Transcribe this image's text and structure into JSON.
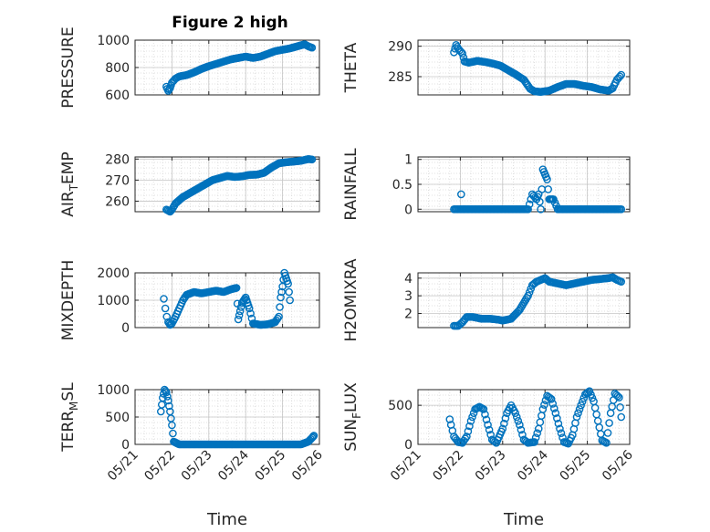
{
  "figure": {
    "title": "Figure 2 high",
    "series_color": "#0072BD"
  },
  "chart_data": [
    {
      "type": "scatter",
      "ylabel": "PRESSURE",
      "xlabel": "",
      "xlim": [
        0,
        5
      ],
      "ylim": [
        600,
        1000
      ],
      "yticks": [
        600,
        800,
        1000
      ],
      "xticks": [
        0,
        1,
        2,
        3,
        4,
        5
      ],
      "xticklabels": [
        "05/21",
        "05/22",
        "05/23",
        "05/24",
        "05/25",
        "05/26"
      ],
      "series": [
        {
          "name": "PRESSURE",
          "x": [
            0.85,
            0.9,
            0.95,
            1.0,
            1.1,
            1.2,
            1.4,
            1.6,
            1.8,
            2.0,
            2.3,
            2.6,
            2.9,
            3.0,
            3.2,
            3.4,
            3.6,
            3.8,
            4.0,
            4.2,
            4.4,
            4.6,
            4.7,
            4.8
          ],
          "y": [
            660,
            630,
            650,
            690,
            720,
            735,
            745,
            765,
            790,
            810,
            835,
            860,
            875,
            880,
            870,
            880,
            900,
            920,
            930,
            940,
            955,
            970,
            955,
            945
          ]
        }
      ]
    },
    {
      "type": "scatter",
      "ylabel": "THETA",
      "xlabel": "",
      "xlim": [
        0,
        5
      ],
      "ylim": [
        282,
        291
      ],
      "yticks": [
        285,
        290
      ],
      "xticks": [
        0,
        1,
        2,
        3,
        4,
        5
      ],
      "xticklabels": [
        "05/21",
        "05/22",
        "05/23",
        "05/24",
        "05/25",
        "05/26"
      ],
      "series": [
        {
          "name": "THETA",
          "x": [
            0.85,
            0.9,
            0.95,
            1.05,
            1.1,
            1.2,
            1.4,
            1.6,
            1.8,
            1.95,
            2.1,
            2.3,
            2.5,
            2.65,
            2.75,
            2.9,
            3.1,
            3.3,
            3.5,
            3.7,
            3.9,
            4.1,
            4.3,
            4.5,
            4.6,
            4.7,
            4.8
          ],
          "y": [
            289,
            290.2,
            289.6,
            288.8,
            287.5,
            287.3,
            287.6,
            287.4,
            287.1,
            286.8,
            286.2,
            285.4,
            284.5,
            283.0,
            282.6,
            282.5,
            282.7,
            283.3,
            283.8,
            283.8,
            283.5,
            283.3,
            282.9,
            282.7,
            283.1,
            284.5,
            285.3
          ]
        }
      ]
    },
    {
      "type": "scatter",
      "ylabel": "AIR_TEMP",
      "xlabel": "",
      "xlim": [
        0,
        5
      ],
      "ylim": [
        255,
        281
      ],
      "yticks": [
        260,
        270,
        280
      ],
      "xticks": [
        0,
        1,
        2,
        3,
        4,
        5
      ],
      "xticklabels": [
        "05/21",
        "05/22",
        "05/23",
        "05/24",
        "05/25",
        "05/26"
      ],
      "series": [
        {
          "name": "AIR_TEMP",
          "x": [
            0.85,
            0.95,
            1.0,
            1.1,
            1.3,
            1.5,
            1.7,
            1.9,
            2.1,
            2.3,
            2.5,
            2.7,
            2.9,
            3.1,
            3.3,
            3.5,
            3.7,
            3.9,
            4.1,
            4.3,
            4.5,
            4.7,
            4.8
          ],
          "y": [
            256,
            255,
            256,
            259,
            262,
            264,
            266,
            268,
            270,
            271,
            272,
            271.5,
            271.8,
            272.5,
            272.6,
            273.5,
            276,
            278,
            278.5,
            278.8,
            279.2,
            280.0,
            279.8
          ]
        }
      ]
    },
    {
      "type": "scatter",
      "ylabel": "RAINFALL",
      "xlabel": "",
      "xlim": [
        0,
        5
      ],
      "ylim": [
        -0.05,
        1.05
      ],
      "yticks": [
        0,
        0.5,
        1
      ],
      "xticks": [
        0,
        1,
        2,
        3,
        4,
        5
      ],
      "xticklabels": [
        "05/21",
        "05/22",
        "05/23",
        "05/24",
        "05/25",
        "05/26"
      ],
      "series": [
        {
          "name": "RAINFALL",
          "x": [
            0.85,
            1.0,
            1.2,
            1.4,
            1.6,
            1.8,
            2.0,
            2.2,
            2.4,
            2.6,
            2.7,
            2.8,
            2.85,
            2.9,
            2.95,
            3.0,
            3.05,
            3.1,
            3.15,
            3.2,
            3.3,
            3.5,
            3.7,
            3.9,
            4.1,
            4.3,
            4.5,
            4.7,
            4.8
          ],
          "y": [
            0,
            0,
            0,
            0,
            0,
            0,
            0,
            0,
            0,
            0,
            0.3,
            0.2,
            0.3,
            0.0,
            0.8,
            0.7,
            0.6,
            0.2,
            0.2,
            0.2,
            0,
            0,
            0,
            0,
            0,
            0,
            0,
            0,
            0
          ]
        },
        {
          "name": "RAINFALL-early",
          "x": [
            1.02
          ],
          "y": [
            0.3
          ]
        }
      ]
    },
    {
      "type": "scatter",
      "ylabel": "MIXDEPTH",
      "xlabel": "",
      "xlim": [
        0,
        5
      ],
      "ylim": [
        0,
        2000
      ],
      "yticks": [
        0,
        1000,
        2000
      ],
      "xticks": [
        0,
        1,
        2,
        3,
        4,
        5
      ],
      "xticklabels": [
        "05/21",
        "05/22",
        "05/23",
        "05/24",
        "05/25",
        "05/26"
      ],
      "series": [
        {
          "name": "MIXDEPTH",
          "x": [
            0.78,
            0.82,
            0.86,
            0.9,
            0.95,
            1.0,
            1.1,
            1.2,
            1.3,
            1.4,
            1.6,
            1.8,
            2.0,
            2.2,
            2.4,
            2.6,
            2.75,
            2.8,
            2.85,
            2.9,
            2.95,
            3.0,
            3.05,
            3.1,
            3.2,
            3.4,
            3.6,
            3.8,
            3.9,
            3.95,
            4.0,
            4.05,
            4.1,
            4.15,
            4.2
          ],
          "y": [
            1050,
            700,
            400,
            200,
            100,
            150,
            400,
            700,
            1000,
            1200,
            1300,
            1250,
            1300,
            1350,
            1300,
            1400,
            1450,
            300,
            600,
            900,
            1000,
            1100,
            900,
            700,
            150,
            100,
            120,
            200,
            400,
            1100,
            1500,
            2000,
            1800,
            1600,
            1000
          ]
        }
      ]
    },
    {
      "type": "scatter",
      "ylabel": "H2OMIXRA",
      "xlabel": "",
      "xlim": [
        0,
        5
      ],
      "ylim": [
        1.2,
        4.3
      ],
      "yticks": [
        2,
        3,
        4
      ],
      "xticks": [
        0,
        1,
        2,
        3,
        4,
        5
      ],
      "xticklabels": [
        "05/21",
        "05/22",
        "05/23",
        "05/24",
        "05/25",
        "05/26"
      ],
      "series": [
        {
          "name": "H2OMIXRA",
          "x": [
            0.85,
            0.95,
            1.05,
            1.15,
            1.3,
            1.5,
            1.7,
            1.9,
            2.0,
            2.2,
            2.4,
            2.6,
            2.7,
            2.8,
            2.9,
            3.0,
            3.1,
            3.3,
            3.5,
            3.7,
            3.9,
            4.1,
            4.3,
            4.5,
            4.6,
            4.7,
            4.8
          ],
          "y": [
            1.3,
            1.3,
            1.5,
            1.8,
            1.8,
            1.7,
            1.7,
            1.65,
            1.6,
            1.7,
            2.2,
            3.0,
            3.6,
            3.8,
            3.9,
            4.0,
            3.8,
            3.7,
            3.6,
            3.7,
            3.8,
            3.9,
            3.95,
            4.0,
            4.05,
            3.9,
            3.8
          ]
        }
      ]
    },
    {
      "type": "scatter",
      "ylabel": "TERR_MSL",
      "xlabel": "Time",
      "xlim": [
        0,
        5
      ],
      "ylim": [
        0,
        1000
      ],
      "yticks": [
        0,
        500,
        1000
      ],
      "xticks": [
        0,
        1,
        2,
        3,
        4,
        5
      ],
      "xticklabels": [
        "05/21",
        "05/22",
        "05/23",
        "05/24",
        "05/25",
        "05/26"
      ],
      "series": [
        {
          "name": "TERR_MSL",
          "x": [
            0.7,
            0.75,
            0.8,
            0.85,
            0.9,
            0.95,
            1.0,
            1.05,
            1.2,
            1.5,
            1.8,
            2.1,
            2.4,
            2.7,
            3.0,
            3.3,
            3.6,
            3.9,
            4.2,
            4.5,
            4.7,
            4.8,
            4.85
          ],
          "y": [
            600,
            850,
            1000,
            950,
            800,
            600,
            350,
            50,
            0,
            0,
            0,
            0,
            0,
            0,
            0,
            0,
            0,
            0,
            0,
            0,
            50,
            120,
            160
          ]
        }
      ]
    },
    {
      "type": "scatter",
      "ylabel": "SUN_FLUX",
      "xlabel": "Time",
      "xlim": [
        0,
        5
      ],
      "ylim": [
        0,
        700
      ],
      "yticks": [
        0,
        500
      ],
      "xticks": [
        0,
        1,
        2,
        3,
        4,
        5
      ],
      "xticklabels": [
        "05/21",
        "05/22",
        "05/23",
        "05/24",
        "05/25",
        "05/26"
      ],
      "series": [
        {
          "name": "SUN_FLUX",
          "x": [
            0.75,
            0.78,
            0.85,
            0.95,
            1.05,
            1.15,
            1.25,
            1.35,
            1.45,
            1.55,
            1.65,
            1.75,
            1.85,
            2.0,
            2.1,
            2.2,
            2.3,
            2.4,
            2.5,
            2.6,
            2.75,
            2.85,
            2.95,
            3.05,
            3.15,
            3.25,
            3.35,
            3.45,
            3.55,
            3.65,
            3.75,
            3.85,
            3.95,
            4.05,
            4.15,
            4.25,
            4.35,
            4.45,
            4.55,
            4.65,
            4.75,
            4.8
          ],
          "y": [
            320,
            250,
            100,
            30,
            20,
            100,
            300,
            450,
            480,
            450,
            250,
            60,
            20,
            200,
            400,
            500,
            400,
            250,
            60,
            20,
            30,
            200,
            450,
            620,
            580,
            400,
            200,
            30,
            10,
            120,
            350,
            500,
            640,
            680,
            550,
            300,
            50,
            20,
            400,
            650,
            600,
            350
          ]
        }
      ]
    }
  ]
}
